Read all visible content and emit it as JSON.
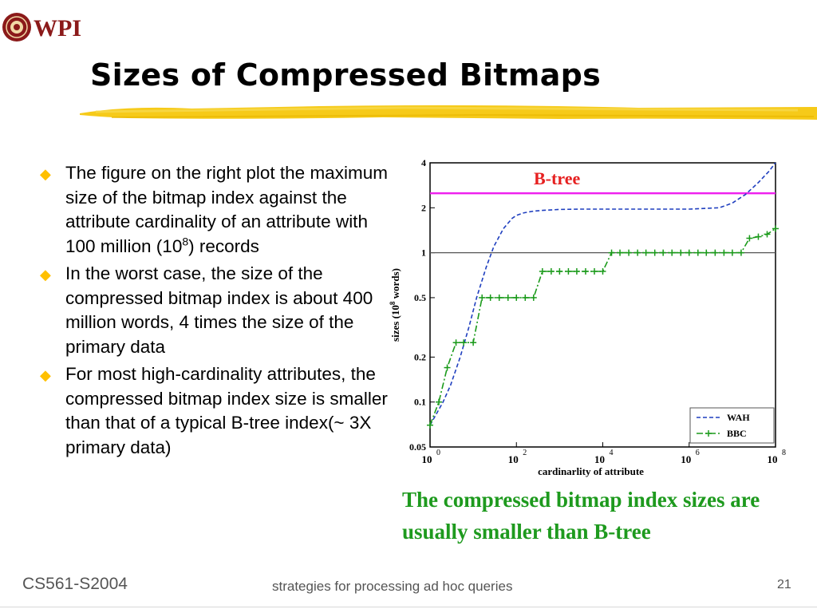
{
  "logo": {
    "text": "WPI"
  },
  "title": "Sizes of Compressed Bitmaps",
  "bullets": [
    {
      "before": "The figure on the right plot the maximum size of the bitmap index against the attribute cardinality of an attribute with 100 million (10",
      "sup": "8",
      "after": ") records"
    },
    {
      "before": "In the worst case, the size of the compressed bitmap index is about 400 million words, 4 times the size of the primary data",
      "sup": "",
      "after": ""
    },
    {
      "before": "For most high-cardinality attributes, the compressed bitmap index size is smaller than that of a typical B-tree index(~ 3X primary data)",
      "sup": "",
      "after": ""
    }
  ],
  "chart_data": {
    "type": "line",
    "x_scale": "log",
    "y_scale": "log",
    "xlabel": "cardinarlity of attribute",
    "ylabel_base": "sizes (10",
    "ylabel_sup": "8",
    "ylabel_end": " words)",
    "xlim": [
      1,
      100000000
    ],
    "ylim": [
      0.05,
      4
    ],
    "x_ticks": [
      {
        "value": 1,
        "base": "10",
        "exp": "0"
      },
      {
        "value": 100,
        "base": "10",
        "exp": "2"
      },
      {
        "value": 10000,
        "base": "10",
        "exp": "4"
      },
      {
        "value": 1000000,
        "base": "10",
        "exp": "6"
      },
      {
        "value": 100000000,
        "base": "10",
        "exp": "8"
      }
    ],
    "y_ticks": [
      {
        "value": 0.05,
        "label": "0.05"
      },
      {
        "value": 0.1,
        "label": "0.1"
      },
      {
        "value": 0.2,
        "label": "0.2"
      },
      {
        "value": 0.5,
        "label": "0.5"
      },
      {
        "value": 1,
        "label": "1"
      },
      {
        "value": 2,
        "label": "2"
      },
      {
        "value": 4,
        "label": "4"
      }
    ],
    "reference_lines": [
      {
        "y": 2.5,
        "color": "#ee22ee",
        "label": "B-tree",
        "label_color": "#e62020"
      },
      {
        "y": 1,
        "color": "#555555",
        "label": ""
      }
    ],
    "series": [
      {
        "name": "WAH",
        "color": "#1f3fbf",
        "style": "dashed",
        "markers": false,
        "x": [
          1,
          2,
          3,
          5,
          8,
          12,
          20,
          30,
          50,
          80,
          100,
          150,
          250,
          400,
          1000,
          3000,
          10000,
          30000,
          100000,
          1000000,
          5000000,
          10000000,
          20000000,
          40000000,
          70000000,
          100000000
        ],
        "y": [
          0.07,
          0.1,
          0.13,
          0.2,
          0.32,
          0.5,
          0.8,
          1.1,
          1.45,
          1.7,
          1.78,
          1.85,
          1.9,
          1.92,
          1.95,
          1.96,
          1.96,
          1.96,
          1.96,
          1.96,
          2.0,
          2.15,
          2.45,
          2.95,
          3.5,
          4.0
        ]
      },
      {
        "name": "BBC",
        "color": "#1a9a1a",
        "style": "dashdot",
        "markers": true,
        "x": [
          1,
          1.6,
          2.5,
          4,
          6,
          10,
          16,
          25,
          40,
          64,
          100,
          160,
          250,
          400,
          640,
          1000,
          1600,
          2500,
          4000,
          6400,
          10000,
          16000,
          25000,
          40000,
          64000,
          100000,
          160000,
          250000,
          400000,
          640000,
          1000000,
          1600000,
          2500000,
          4000000,
          6400000,
          10000000,
          16000000,
          25000000,
          40000000,
          64000000,
          100000000
        ],
        "y": [
          0.07,
          0.1,
          0.17,
          0.25,
          0.25,
          0.25,
          0.5,
          0.5,
          0.5,
          0.5,
          0.5,
          0.5,
          0.5,
          0.75,
          0.75,
          0.75,
          0.75,
          0.75,
          0.75,
          0.75,
          0.75,
          1.0,
          1.0,
          1.0,
          1.0,
          1.0,
          1.0,
          1.0,
          1.0,
          1.0,
          1.0,
          1.0,
          1.0,
          1.0,
          1.0,
          1.0,
          1.0,
          1.25,
          1.28,
          1.33,
          1.45
        ]
      }
    ],
    "legend": {
      "position": "bottom-right"
    }
  },
  "caption": "The compressed bitmap index sizes are usually smaller than B-tree",
  "footer": {
    "course": "CS561-S2004",
    "subtitle": "strategies for processing ad hoc queries",
    "page_number": "21"
  },
  "colors": {
    "bullet": "#ffc000",
    "highlight": "#f5c400",
    "caption": "#1e9a1e",
    "logo_ring": "#8b1a1a"
  }
}
